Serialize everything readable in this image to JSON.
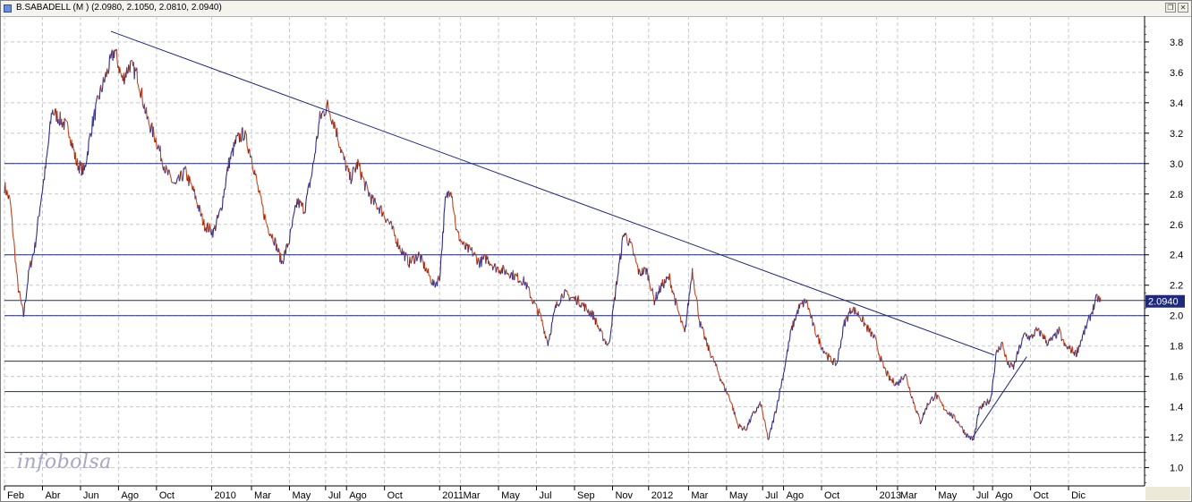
{
  "window": {
    "title": "B.SABADELL (M ) (2.0980, 2.1050, 2.0810, 2.0940)",
    "restore_glyph": "❐",
    "close_glyph": "✕"
  },
  "watermark": "infobolsa",
  "colors": {
    "price_up": "#2b2b8c",
    "price_down": "#c0441c",
    "trendline": "#1f2a7a",
    "hline": "#1f2a7a",
    "grid": "#c8c8c8",
    "last_price_bg": "#1f2a7a"
  },
  "chart_data": {
    "type": "line",
    "title": "B.SABADELL (M )",
    "ylim": [
      0.88,
      3.97
    ],
    "yticks": [
      1.0,
      1.2,
      1.4,
      1.6,
      1.8,
      2.0,
      2.2,
      2.4,
      2.6,
      2.8,
      3.0,
      3.2,
      3.4,
      3.6,
      3.8
    ],
    "ytick_labels": [
      "1.0",
      "1.2",
      "1.4",
      "1.6",
      "1.8",
      "2.0",
      "2.2",
      "2.4",
      "2.6",
      "2.8",
      "3.0",
      "3.2",
      "3.4",
      "3.6",
      "3.8"
    ],
    "xlim": [
      0,
      60
    ],
    "month_labels": [
      {
        "t": 0.0,
        "label": "Feb"
      },
      {
        "t": 2.0,
        "label": "Abr"
      },
      {
        "t": 4.0,
        "label": "Jun"
      },
      {
        "t": 6.0,
        "label": "Ago"
      },
      {
        "t": 8.0,
        "label": "Oct"
      },
      {
        "t": 10.9,
        "label": "2010"
      },
      {
        "t": 13.0,
        "label": "Mar"
      },
      {
        "t": 15.0,
        "label": "May"
      },
      {
        "t": 16.9,
        "label": "Jul"
      },
      {
        "t": 18.0,
        "label": "Ago"
      },
      {
        "t": 20.0,
        "label": "Oct"
      },
      {
        "t": 22.9,
        "label": "2011"
      },
      {
        "t": 24.0,
        "label": "Mar"
      },
      {
        "t": 26.0,
        "label": "May"
      },
      {
        "t": 28.0,
        "label": "Jul"
      },
      {
        "t": 30.0,
        "label": "Sep"
      },
      {
        "t": 32.0,
        "label": "Nov"
      },
      {
        "t": 33.9,
        "label": "2012"
      },
      {
        "t": 36.0,
        "label": "Mar"
      },
      {
        "t": 38.0,
        "label": "May"
      },
      {
        "t": 39.9,
        "label": "Jul"
      },
      {
        "t": 41.0,
        "label": "Ago"
      },
      {
        "t": 43.0,
        "label": "Oct"
      },
      {
        "t": 45.9,
        "label": "2013"
      },
      {
        "t": 47.0,
        "label": "Mar"
      },
      {
        "t": 49.0,
        "label": "May"
      },
      {
        "t": 51.0,
        "label": "Jul"
      },
      {
        "t": 52.0,
        "label": "Ago"
      },
      {
        "t": 54.0,
        "label": "Oct"
      },
      {
        "t": 56.0,
        "label": "Dic"
      }
    ],
    "series": [
      {
        "x": [
          0.0,
          0.3,
          0.7,
          1.0,
          1.3,
          1.6,
          1.9,
          2.2,
          2.5,
          3.0,
          3.4,
          3.8,
          4.2,
          4.6,
          5.0,
          5.4,
          5.8,
          6.2,
          6.6,
          7.0,
          7.5,
          8.0,
          8.5,
          9.0,
          9.5,
          10.0,
          10.5,
          11.0,
          11.4,
          11.8,
          12.2,
          12.6,
          13.0,
          13.4,
          13.8,
          14.2,
          14.6,
          15.0,
          15.4,
          15.8,
          16.2,
          16.6,
          17.0,
          17.4,
          17.8,
          18.2,
          18.6,
          19.0,
          19.4,
          19.8,
          20.3,
          20.8,
          21.3,
          21.8,
          22.2,
          22.6,
          22.9,
          23.2,
          23.5,
          23.8,
          24.2,
          24.6,
          25.0,
          25.4,
          25.8,
          26.2,
          26.6,
          27.0,
          27.4,
          27.8,
          28.2,
          28.6,
          29.0,
          29.4,
          29.8,
          30.2,
          30.6,
          31.0,
          31.4,
          31.8,
          32.2,
          32.6,
          33.0,
          33.4,
          33.8,
          34.2,
          34.6,
          35.0,
          35.4,
          35.8,
          36.2,
          36.6,
          37.0,
          37.4,
          37.8,
          38.2,
          38.6,
          39.0,
          39.4,
          39.8,
          40.2,
          40.6,
          41.0,
          41.4,
          41.8,
          42.2,
          42.6,
          43.0,
          43.4,
          43.8,
          44.2,
          44.6,
          45.0,
          45.4,
          45.8,
          46.2,
          46.6,
          47.0,
          47.4,
          47.8,
          48.2,
          48.6,
          49.0,
          49.4,
          49.8,
          50.2,
          50.6,
          51.0,
          51.3,
          51.6,
          51.9,
          52.2,
          52.5,
          52.8,
          53.1,
          53.4,
          53.7,
          54.0,
          54.3,
          54.6,
          54.9,
          55.2,
          55.5,
          55.8,
          56.1,
          56.4,
          56.7,
          57.0,
          57.3,
          57.5,
          57.7
        ],
        "y": [
          2.85,
          2.75,
          2.2,
          2.0,
          2.3,
          2.45,
          2.75,
          3.0,
          3.35,
          3.28,
          3.22,
          3.0,
          2.95,
          3.25,
          3.45,
          3.6,
          3.75,
          3.55,
          3.65,
          3.58,
          3.3,
          3.15,
          2.95,
          2.85,
          2.95,
          2.8,
          2.6,
          2.55,
          2.7,
          3.0,
          3.15,
          3.2,
          3.05,
          2.8,
          2.6,
          2.5,
          2.35,
          2.5,
          2.75,
          2.7,
          2.95,
          3.3,
          3.38,
          3.25,
          3.05,
          2.9,
          3.0,
          2.85,
          2.75,
          2.7,
          2.6,
          2.45,
          2.35,
          2.4,
          2.3,
          2.2,
          2.25,
          2.75,
          2.85,
          2.55,
          2.45,
          2.42,
          2.35,
          2.38,
          2.32,
          2.3,
          2.28,
          2.25,
          2.22,
          2.1,
          2.0,
          1.82,
          2.05,
          2.15,
          2.12,
          2.1,
          2.05,
          2.0,
          1.88,
          1.8,
          2.2,
          2.55,
          2.45,
          2.28,
          2.3,
          2.1,
          2.2,
          2.25,
          2.05,
          1.88,
          2.3,
          1.95,
          1.8,
          1.68,
          1.55,
          1.45,
          1.28,
          1.25,
          1.35,
          1.42,
          1.18,
          1.38,
          1.62,
          1.9,
          2.05,
          2.1,
          1.92,
          1.8,
          1.72,
          1.68,
          1.95,
          2.05,
          2.0,
          1.92,
          1.85,
          1.68,
          1.58,
          1.55,
          1.62,
          1.45,
          1.3,
          1.42,
          1.48,
          1.4,
          1.35,
          1.3,
          1.22,
          1.18,
          1.38,
          1.42,
          1.45,
          1.75,
          1.82,
          1.68,
          1.66,
          1.78,
          1.88,
          1.85,
          1.9,
          1.88,
          1.82,
          1.85,
          1.9,
          1.8,
          1.78,
          1.75,
          1.85,
          1.95,
          2.05,
          2.12,
          2.094
        ]
      }
    ],
    "trendline_down": {
      "x": [
        5.6,
        52.1
      ],
      "y": [
        3.87,
        1.74
      ]
    },
    "trendline_up": {
      "x": [
        50.9,
        53.8
      ],
      "y": [
        1.19,
        1.73
      ]
    },
    "horizontal_levels": [
      3.0,
      2.4,
      2.1,
      2.0,
      1.7,
      1.5,
      1.1
    ],
    "last_price": 2.094,
    "last_price_label": "2.0940",
    "grid": true
  }
}
